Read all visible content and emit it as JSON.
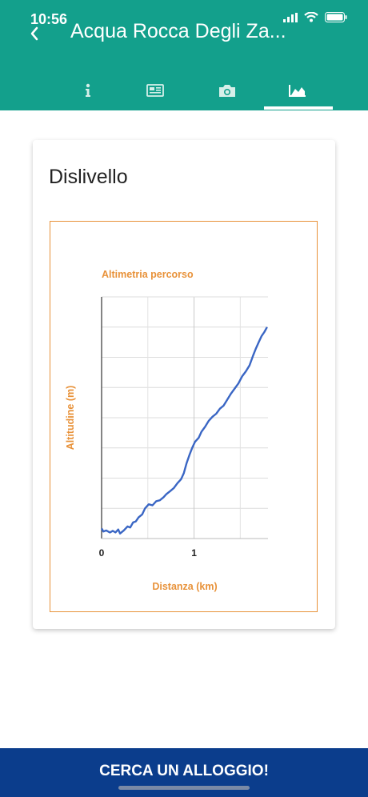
{
  "status_bar": {
    "time": "10:56"
  },
  "header": {
    "title": "Acqua Rocca Degli Za...",
    "tabs": [
      {
        "icon": "info-icon"
      },
      {
        "icon": "newspaper-icon"
      },
      {
        "icon": "camera-icon"
      },
      {
        "icon": "elevation-chart-icon",
        "selected": true
      }
    ],
    "colors": {
      "header": "#13a08c"
    }
  },
  "card": {
    "title": "Dislivello"
  },
  "chart_data": {
    "type": "line",
    "title": "Altimetria percorso",
    "xlabel": "Distanza (km)",
    "ylabel": "Altitudine (m)",
    "xlim": [
      0,
      1.8
    ],
    "x_ticks": [
      "0",
      "1"
    ],
    "grid": true,
    "series": [
      {
        "color": "#3a66c4",
        "points": [
          [
            0.0,
            0.5
          ],
          [
            0.02,
            0.35
          ],
          [
            0.05,
            0.4
          ],
          [
            0.09,
            0.3
          ],
          [
            0.12,
            0.38
          ],
          [
            0.15,
            0.3
          ],
          [
            0.18,
            0.45
          ],
          [
            0.2,
            0.25
          ],
          [
            0.24,
            0.4
          ],
          [
            0.28,
            0.6
          ],
          [
            0.31,
            0.55
          ],
          [
            0.34,
            0.8
          ],
          [
            0.37,
            0.85
          ],
          [
            0.4,
            1.05
          ],
          [
            0.44,
            1.2
          ],
          [
            0.47,
            1.5
          ],
          [
            0.51,
            1.7
          ],
          [
            0.55,
            1.65
          ],
          [
            0.59,
            1.85
          ],
          [
            0.63,
            1.9
          ],
          [
            0.67,
            2.05
          ],
          [
            0.7,
            2.2
          ],
          [
            0.74,
            2.35
          ],
          [
            0.78,
            2.5
          ],
          [
            0.82,
            2.75
          ],
          [
            0.86,
            2.95
          ],
          [
            0.89,
            3.25
          ],
          [
            0.92,
            3.75
          ],
          [
            0.95,
            4.15
          ],
          [
            0.98,
            4.5
          ],
          [
            1.01,
            4.8
          ],
          [
            1.05,
            5.0
          ],
          [
            1.08,
            5.3
          ],
          [
            1.12,
            5.55
          ],
          [
            1.16,
            5.85
          ],
          [
            1.2,
            6.05
          ],
          [
            1.24,
            6.2
          ],
          [
            1.28,
            6.45
          ],
          [
            1.32,
            6.6
          ],
          [
            1.36,
            6.9
          ],
          [
            1.4,
            7.2
          ],
          [
            1.44,
            7.45
          ],
          [
            1.48,
            7.7
          ],
          [
            1.52,
            8.05
          ],
          [
            1.56,
            8.3
          ],
          [
            1.6,
            8.6
          ],
          [
            1.64,
            9.1
          ],
          [
            1.67,
            9.45
          ],
          [
            1.7,
            9.75
          ],
          [
            1.73,
            10.05
          ],
          [
            1.76,
            10.25
          ],
          [
            1.79,
            10.5
          ]
        ]
      }
    ]
  },
  "colors": {
    "chart_accent": "#e8923a",
    "bottom_bar": "#0b3d8c"
  },
  "bottom_bar": {
    "label": "CERCA UN ALLOGGIO!"
  }
}
